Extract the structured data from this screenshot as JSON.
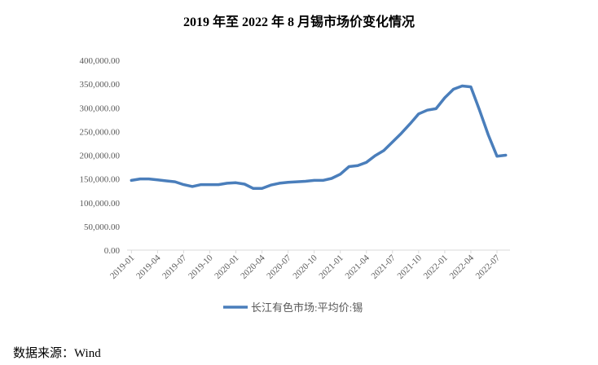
{
  "chart_data": {
    "type": "line",
    "title": "2019 年至 2022 年 8 月锡市场价变化情况",
    "xlabel": "",
    "ylabel": "",
    "ylim": [
      0,
      400000
    ],
    "yticks": [
      "0.00",
      "50,000.00",
      "100,000.00",
      "150,000.00",
      "200,000.00",
      "250,000.00",
      "300,000.00",
      "350,000.00",
      "400,000.00"
    ],
    "x": [
      "2019-01",
      "2019-02",
      "2019-03",
      "2019-04",
      "2019-05",
      "2019-06",
      "2019-07",
      "2019-08",
      "2019-09",
      "2019-10",
      "2019-11",
      "2019-12",
      "2020-01",
      "2020-02",
      "2020-03",
      "2020-04",
      "2020-05",
      "2020-06",
      "2020-07",
      "2020-08",
      "2020-09",
      "2020-10",
      "2020-11",
      "2020-12",
      "2021-01",
      "2021-02",
      "2021-03",
      "2021-04",
      "2021-05",
      "2021-06",
      "2021-07",
      "2021-08",
      "2021-09",
      "2021-10",
      "2021-11",
      "2021-12",
      "2022-01",
      "2022-02",
      "2022-03",
      "2022-04",
      "2022-05",
      "2022-06",
      "2022-07",
      "2022-08"
    ],
    "xtick_labels": [
      "2019-01",
      "2019-04",
      "2019-07",
      "2019-10",
      "2020-01",
      "2020-04",
      "2020-07",
      "2020-10",
      "2021-01",
      "2021-04",
      "2021-07",
      "2021-10",
      "2022-01",
      "2022-04",
      "2022-07"
    ],
    "series": [
      {
        "name": "长江有色市场:平均价:锡",
        "color": "#4a7ebb",
        "values": [
          147000,
          150000,
          150000,
          148000,
          146000,
          144000,
          138000,
          134000,
          138000,
          138000,
          138000,
          141000,
          142000,
          139000,
          130000,
          130000,
          137000,
          141000,
          143000,
          144000,
          145000,
          147000,
          147000,
          151000,
          160000,
          176000,
          178000,
          185000,
          199000,
          210000,
          228000,
          246000,
          266000,
          287000,
          295000,
          298000,
          321000,
          339000,
          346000,
          344000,
          295000,
          243000,
          198000,
          200000
        ]
      }
    ],
    "grid": false,
    "legend": "bottom"
  },
  "source_note": "数据来源：Wind"
}
